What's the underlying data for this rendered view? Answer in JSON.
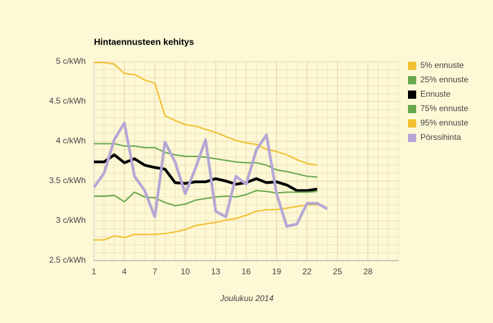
{
  "chart_data": {
    "type": "line",
    "title": "Hintaennusteen kehitys",
    "x_label": "Joulukuu 2014",
    "x": [
      1,
      2,
      3,
      4,
      5,
      6,
      7,
      8,
      9,
      10,
      11,
      12,
      13,
      14,
      15,
      16,
      17,
      18,
      19,
      20,
      21,
      22,
      23,
      24
    ],
    "series": [
      {
        "name": "5% ennuste",
        "color": "#f0c030",
        "width": 2,
        "values": [
          4.99,
          4.99,
          4.97,
          4.85,
          4.84,
          4.77,
          4.73,
          4.32,
          4.26,
          4.21,
          4.19,
          4.15,
          4.11,
          4.06,
          4.01,
          3.98,
          3.96,
          3.9,
          3.87,
          3.83,
          3.77,
          3.72,
          3.7,
          null
        ]
      },
      {
        "name": "25% ennuste",
        "color": "#6aa84f",
        "width": 2,
        "values": [
          3.97,
          3.97,
          3.97,
          3.94,
          3.94,
          3.92,
          3.92,
          3.86,
          3.83,
          3.81,
          3.81,
          3.8,
          3.78,
          3.76,
          3.74,
          3.73,
          3.73,
          3.7,
          3.64,
          3.62,
          3.59,
          3.56,
          3.55,
          null
        ]
      },
      {
        "name": "Ennuste",
        "color": "#000000",
        "width": 4,
        "values": [
          3.74,
          3.74,
          3.83,
          3.73,
          3.78,
          3.7,
          3.67,
          3.65,
          3.48,
          3.47,
          3.49,
          3.49,
          3.53,
          3.5,
          3.46,
          3.48,
          3.53,
          3.48,
          3.49,
          3.45,
          3.38,
          3.38,
          3.4,
          null
        ]
      },
      {
        "name": "75% ennuste",
        "color": "#6aa84f",
        "width": 2,
        "values": [
          3.31,
          3.31,
          3.32,
          3.24,
          3.36,
          3.3,
          3.29,
          3.23,
          3.19,
          3.21,
          3.26,
          3.28,
          3.3,
          3.31,
          3.3,
          3.33,
          3.38,
          3.37,
          3.35,
          3.36,
          3.36,
          3.36,
          3.37,
          null
        ]
      },
      {
        "name": "95% ennuste",
        "color": "#f0c030",
        "width": 2,
        "values": [
          2.76,
          2.76,
          2.81,
          2.79,
          2.83,
          2.83,
          2.83,
          2.84,
          2.86,
          2.89,
          2.94,
          2.96,
          2.98,
          3.01,
          3.03,
          3.07,
          3.12,
          3.14,
          3.14,
          3.16,
          3.18,
          3.2,
          3.2,
          null
        ]
      },
      {
        "name": "Pörssihinta",
        "color": "#b4a7d6",
        "width": 4,
        "values": [
          3.42,
          3.6,
          4.02,
          4.23,
          3.56,
          3.38,
          3.05,
          3.99,
          3.74,
          3.34,
          3.66,
          4.02,
          3.12,
          3.05,
          3.56,
          3.46,
          3.89,
          4.08,
          3.34,
          2.93,
          2.96,
          3.22,
          3.22,
          3.15
        ]
      }
    ],
    "xlim": [
      1,
      31
    ],
    "xticks": [
      1,
      4,
      7,
      10,
      13,
      16,
      19,
      22,
      25,
      28
    ],
    "ylim": [
      2.5,
      5
    ],
    "yticks": [
      {
        "value": 2.5,
        "label": "2.5 c/kWh"
      },
      {
        "value": 3,
        "label": "3 c/kWh"
      },
      {
        "value": 3.5,
        "label": "3.5 c/kWh"
      },
      {
        "value": 4,
        "label": "4 c/kWh"
      },
      {
        "value": 4.5,
        "label": "4.5 c/kWh"
      },
      {
        "value": 5,
        "label": "5 c/kWh"
      }
    ],
    "grid": true,
    "minor_grid_step_x": 1,
    "minor_grid_step_y": 0.1,
    "legend": "right"
  }
}
